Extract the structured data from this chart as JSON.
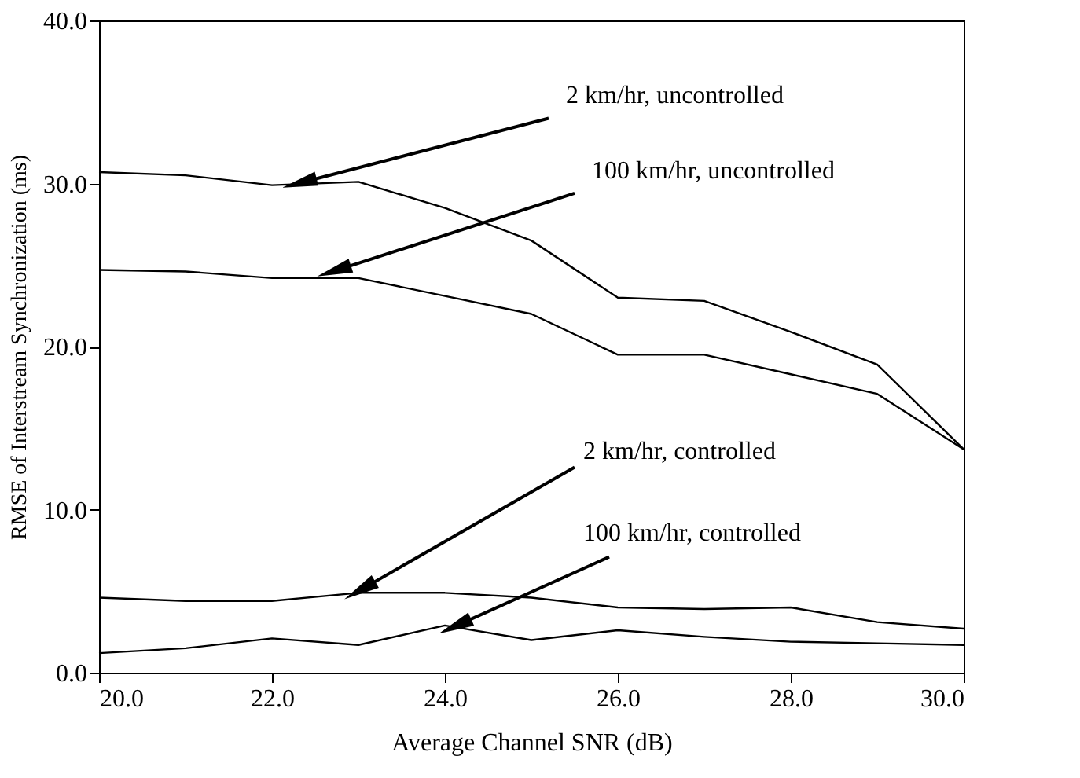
{
  "chart_data": {
    "type": "line",
    "xlabel": "Average Channel SNR (dB)",
    "ylabel": "RMSE of Interstream Synchronization (ms)",
    "x": [
      20,
      21,
      22,
      23,
      24,
      25,
      26,
      27,
      28,
      29,
      30
    ],
    "series": [
      {
        "color": "#000000",
        "values": [
          30.7,
          30.5,
          29.9,
          30.1,
          28.5,
          26.5,
          23.0,
          22.8,
          20.9,
          18.9,
          13.7
        ]
      },
      {
        "color": "#000000",
        "values": [
          24.7,
          24.6,
          24.2,
          24.2,
          23.1,
          22.0,
          19.5,
          19.5,
          18.3,
          17.1,
          13.7
        ]
      },
      {
        "color": "#000000",
        "values": [
          4.6,
          4.4,
          4.4,
          4.9,
          4.9,
          4.6,
          4.0,
          3.9,
          4.0,
          3.1,
          2.7
        ]
      },
      {
        "color": "#000000",
        "values": [
          1.2,
          1.5,
          2.1,
          1.7,
          2.9,
          2.0,
          2.6,
          2.2,
          1.9,
          1.8,
          1.7
        ]
      }
    ],
    "annotations": [
      {
        "text": "2 km/hr, uncontrolled",
        "x": 22.3,
        "y": 30.0
      },
      {
        "text": "100 km/hr, uncontrolled",
        "x": 22.7,
        "y": 24.6
      },
      {
        "text": "2 km/hr, controlled",
        "x": 23.0,
        "y": 5.0
      },
      {
        "text": "100 km/hr, controlled",
        "x": 24.1,
        "y": 2.8
      }
    ],
    "xlim": [
      20,
      30
    ],
    "ylim": [
      0,
      40
    ],
    "xticks": [
      {
        "value": 20,
        "label": "20.0"
      },
      {
        "value": 22,
        "label": "22.0"
      },
      {
        "value": 24,
        "label": "24.0"
      },
      {
        "value": 26,
        "label": "26.0"
      },
      {
        "value": 28,
        "label": "28.0"
      },
      {
        "value": 30,
        "label": "30.0"
      }
    ],
    "yticks": [
      {
        "value": 0,
        "label": "0.0"
      },
      {
        "value": 10,
        "label": "10.0"
      },
      {
        "value": 20,
        "label": "20.0"
      },
      {
        "value": 30,
        "label": "30.0"
      },
      {
        "value": 40,
        "label": "40.0"
      }
    ],
    "grid": false,
    "legend": false,
    "marker": "none",
    "line_style": "solid"
  }
}
